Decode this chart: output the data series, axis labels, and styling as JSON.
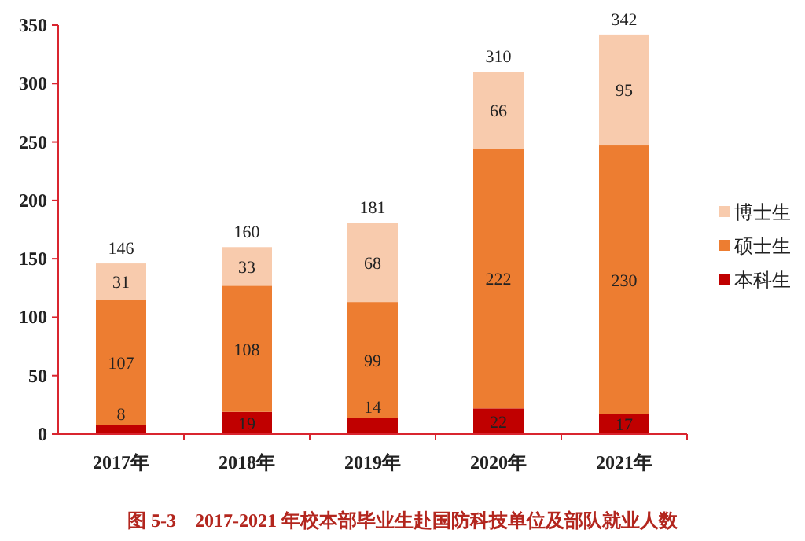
{
  "chart_data": {
    "type": "bar",
    "stacked": true,
    "title": "图 5-3　2017-2021 年校本部毕业生赴国防科技单位及部队就业人数",
    "categories": [
      "2017年",
      "2018年",
      "2019年",
      "2020年",
      "2021年"
    ],
    "series": [
      {
        "name": "本科生",
        "color": "#c00000",
        "values": [
          8,
          19,
          14,
          22,
          17
        ]
      },
      {
        "name": "硕士生",
        "color": "#ed7d31",
        "values": [
          107,
          108,
          99,
          222,
          230
        ]
      },
      {
        "name": "博士生",
        "color": "#f8cbad",
        "values": [
          31,
          33,
          68,
          66,
          95
        ]
      }
    ],
    "totals": [
      "146",
      "160",
      "181",
      "310",
      "342"
    ],
    "ylim": [
      0,
      350
    ],
    "yticks": [
      0,
      50,
      100,
      150,
      200,
      250,
      300,
      350
    ],
    "data_labels": true,
    "legend": "right"
  }
}
